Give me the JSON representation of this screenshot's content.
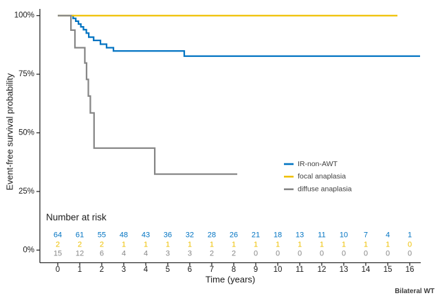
{
  "chart_data": {
    "type": "line",
    "subtype": "kaplan-meier-step",
    "title": "",
    "xlabel": "Time (years)",
    "ylabel": "Event-free survival probability",
    "x_ticks": [
      0,
      1,
      2,
      3,
      4,
      5,
      6,
      7,
      8,
      9,
      10,
      11,
      12,
      13,
      14,
      15,
      16
    ],
    "y_ticks": [
      {
        "value": 100,
        "label": "100%"
      },
      {
        "value": 75,
        "label": "75%"
      },
      {
        "value": 50,
        "label": "50%"
      },
      {
        "value": 25,
        "label": "25%"
      },
      {
        "value": 0,
        "label": "0%"
      }
    ],
    "xlim": [
      -0.8,
      16.6
    ],
    "ylim": [
      0,
      100
    ],
    "grid": "off",
    "legend_position": "inside-right-middle",
    "series": [
      {
        "name": "IR-non-AWT",
        "color": "#0073C2",
        "end_time": 16.47,
        "steps": [
          [
            0,
            100
          ],
          [
            0.7,
            98.8
          ],
          [
            0.82,
            97.6
          ],
          [
            0.94,
            96.4
          ],
          [
            1.05,
            95.2
          ],
          [
            1.17,
            94.0
          ],
          [
            1.3,
            92.5
          ],
          [
            1.41,
            90.8
          ],
          [
            1.63,
            89.4
          ],
          [
            1.94,
            87.8
          ],
          [
            2.22,
            86.3
          ],
          [
            2.53,
            84.9
          ],
          [
            5.75,
            82.7
          ]
        ]
      },
      {
        "name": "focal anaplasia",
        "color": "#EFC000",
        "end_time": 15.44,
        "steps": [
          [
            0,
            100
          ]
        ]
      },
      {
        "name": "diffuse anaplasia",
        "color": "#868686",
        "end_time": 8.16,
        "steps": [
          [
            0,
            100
          ],
          [
            0.6,
            93.8
          ],
          [
            0.78,
            86.3
          ],
          [
            1.23,
            79.8
          ],
          [
            1.31,
            72.8
          ],
          [
            1.39,
            65.7
          ],
          [
            1.48,
            58.5
          ],
          [
            1.65,
            43.5
          ],
          [
            4.41,
            32.4
          ]
        ]
      }
    ],
    "risk_table": {
      "title": "Number at risk",
      "times": [
        0,
        1,
        2,
        3,
        4,
        5,
        6,
        7,
        8,
        9,
        10,
        11,
        12,
        13,
        14,
        15,
        16
      ],
      "rows": [
        {
          "name": "IR-non-AWT",
          "color": "#0073C2",
          "values": [
            64,
            61,
            55,
            48,
            43,
            36,
            32,
            28,
            26,
            21,
            18,
            13,
            11,
            10,
            7,
            4,
            1
          ]
        },
        {
          "name": "focal anaplasia",
          "color": "#EFC000",
          "values": [
            2,
            2,
            2,
            1,
            1,
            1,
            1,
            1,
            1,
            1,
            1,
            1,
            1,
            1,
            1,
            1,
            0
          ]
        },
        {
          "name": "diffuse anaplasia",
          "color": "#868686",
          "values": [
            15,
            12,
            6,
            4,
            4,
            3,
            3,
            2,
            2,
            0,
            0,
            0,
            0,
            0,
            0,
            0,
            0
          ]
        }
      ]
    },
    "caption": "Bilateral WT",
    "axis_color": "#1a1a1a",
    "tick_label_color": "#1a1a1a",
    "legend_text_color": "#404040"
  }
}
